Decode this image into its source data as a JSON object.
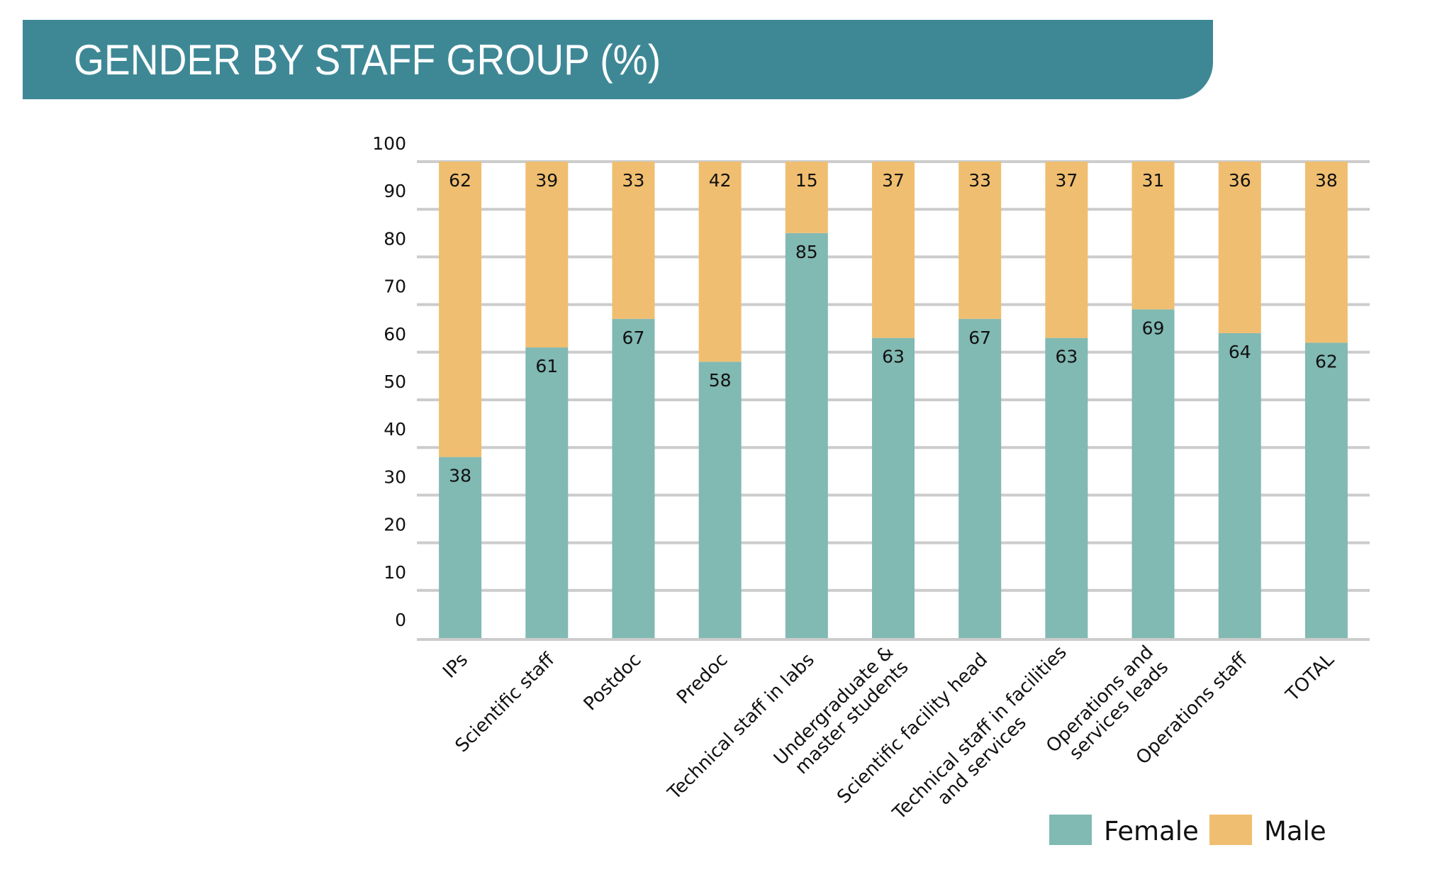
{
  "header": {
    "title": "GENDER BY STAFF GROUP (%)"
  },
  "colors": {
    "header_band": "#3e8896",
    "female": "#81b9b3",
    "male": "#f0be70",
    "grid": "#cccccc",
    "text": "#111111"
  },
  "chart_data": {
    "type": "bar",
    "stacked": true,
    "title": "GENDER BY STAFF GROUP (%)",
    "xlabel": "",
    "ylabel": "",
    "ylim": [
      0,
      100
    ],
    "yticks": [
      0,
      10,
      20,
      30,
      40,
      50,
      60,
      70,
      80,
      90,
      100
    ],
    "grid": true,
    "legend": "bottom-right",
    "categories": [
      [
        "IPs"
      ],
      [
        "Scientific staff"
      ],
      [
        "Postdoc"
      ],
      [
        "Predoc"
      ],
      [
        "Technical staff in labs"
      ],
      [
        "Undergraduate &",
        "master students"
      ],
      [
        "Scientific facility head"
      ],
      [
        "Technical staff in facilities",
        "and services"
      ],
      [
        "Operations and",
        "services leads"
      ],
      [
        "Operations staff"
      ],
      [
        "TOTAL"
      ]
    ],
    "series": [
      {
        "name": "Female",
        "color": "#81b9b3",
        "values": [
          38,
          61,
          67,
          58,
          85,
          63,
          67,
          63,
          69,
          64,
          62
        ]
      },
      {
        "name": "Male",
        "color": "#f0be70",
        "values": [
          62,
          39,
          33,
          42,
          15,
          37,
          33,
          37,
          31,
          36,
          38
        ]
      }
    ]
  }
}
